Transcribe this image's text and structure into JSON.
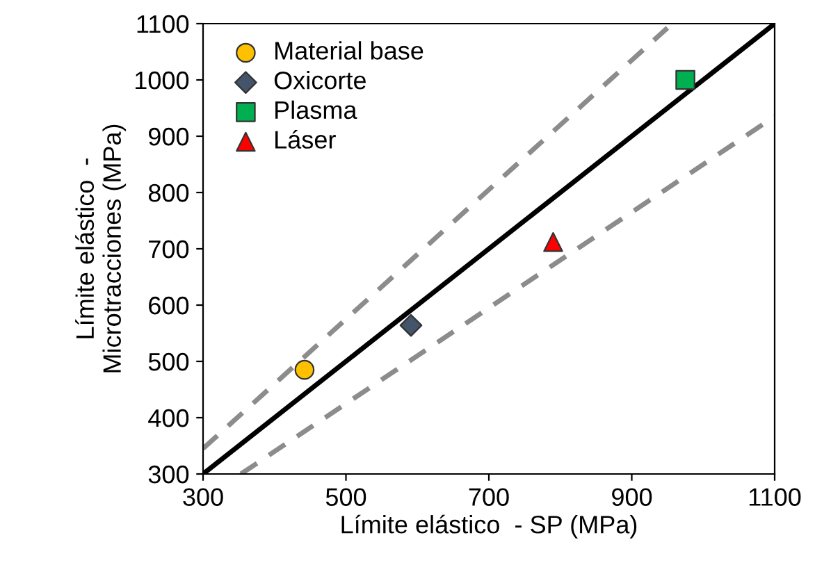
{
  "chart_data": {
    "type": "scatter",
    "xlabel": "Límite elástico  - SP (MPa)",
    "ylabel": "Límite elástico  -\nMicrotracciones (MPa)",
    "xlim": [
      300,
      1100
    ],
    "ylim": [
      300,
      1100
    ],
    "xticks": [
      300,
      500,
      700,
      900,
      1100
    ],
    "yticks": [
      300,
      400,
      500,
      600,
      700,
      800,
      900,
      1000,
      1100
    ],
    "grid": false,
    "legend": "top left",
    "series": [
      {
        "name": "Material base",
        "color": "#ffc000",
        "marker": "circle",
        "x": [
          442
        ],
        "values": [
          485
        ]
      },
      {
        "name": "Oxicorte",
        "color": "#44546a",
        "marker": "diamond",
        "x": [
          591
        ],
        "values": [
          564
        ]
      },
      {
        "name": "Plasma",
        "color": "#00b050",
        "marker": "square",
        "x": [
          975
        ],
        "values": [
          1000
        ]
      },
      {
        "name": "Láser",
        "color": "#ff0000",
        "marker": "triangle",
        "x": [
          790
        ],
        "values": [
          712
        ]
      },
      {
        "type": "line",
        "color": "#000000",
        "line_style": "solid",
        "marker": "none",
        "x": [
          300,
          1100
        ],
        "values": [
          300,
          1100
        ]
      },
      {
        "type": "line",
        "color": "#8c8c8c",
        "line_style": "dashed",
        "marker": "none",
        "x": [
          300,
          950
        ],
        "values": [
          345,
          1092.5
        ]
      },
      {
        "type": "line",
        "color": "#8c8c8c",
        "line_style": "dashed",
        "marker": "none",
        "x": [
          353,
          1100
        ],
        "values": [
          300,
          935
        ]
      }
    ]
  }
}
